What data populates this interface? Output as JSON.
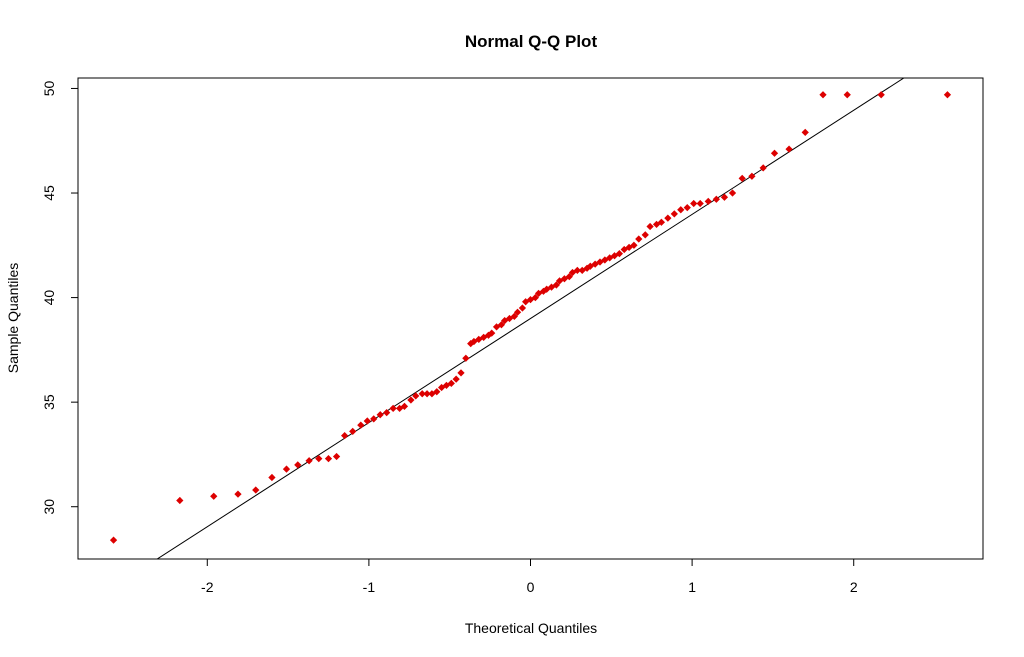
{
  "chart_data": {
    "type": "scatter",
    "title": "Normal Q-Q Plot",
    "xlabel": "Theoretical Quantiles",
    "ylabel": "Sample Quantiles",
    "xlim": [
      -2.8,
      2.8
    ],
    "ylim": [
      27.5,
      50.5
    ],
    "x_ticks": [
      -2,
      -1,
      0,
      1,
      2
    ],
    "x_tick_labels": [
      "-2",
      "-1",
      "0",
      "1",
      "2"
    ],
    "y_ticks": [
      30,
      35,
      40,
      45,
      50
    ],
    "y_tick_labels": [
      "30",
      "35",
      "40",
      "45",
      "50"
    ],
    "grid": false,
    "point_color": "#dd0000",
    "line_color": "#000000",
    "reference_line": {
      "x": [
        -2.8,
        2.8
      ],
      "y": [
        25.06,
        52.94
      ]
    },
    "series": [
      {
        "x": [
          -2.58,
          -2.17,
          -1.96,
          -1.81,
          -1.7,
          -1.6,
          -1.51,
          -1.44,
          -1.37,
          -1.31,
          -1.25,
          -1.2,
          -1.15,
          -1.1,
          -1.05,
          -1.01,
          -0.97,
          -0.93,
          -0.89,
          -0.85,
          -0.81,
          -0.78,
          -0.74,
          -0.71,
          -0.67,
          -0.64,
          -0.61,
          -0.58,
          -0.55,
          -0.52,
          -0.49,
          -0.46,
          -0.43,
          -0.4,
          -0.37,
          -0.35,
          -0.32,
          -0.29,
          -0.26,
          -0.24,
          -0.21,
          -0.18,
          -0.16,
          -0.13,
          -0.1,
          -0.08,
          -0.05,
          -0.03,
          0.0,
          0.03,
          0.05,
          0.08,
          0.1,
          0.13,
          0.16,
          0.18,
          0.21,
          0.24,
          0.26,
          0.29,
          0.32,
          0.35,
          0.37,
          0.4,
          0.43,
          0.46,
          0.49,
          0.52,
          0.55,
          0.58,
          0.61,
          0.64,
          0.67,
          0.71,
          0.74,
          0.78,
          0.81,
          0.85,
          0.89,
          0.93,
          0.97,
          1.01,
          1.05,
          1.1,
          1.15,
          1.2,
          1.25,
          1.31,
          1.37,
          1.44,
          1.51,
          1.6,
          1.7,
          1.81,
          1.96,
          2.17,
          2.58
        ],
        "y": [
          28.4,
          30.3,
          30.5,
          30.6,
          30.8,
          31.4,
          31.8,
          32.0,
          32.2,
          32.3,
          32.3,
          32.4,
          33.4,
          33.6,
          33.9,
          34.1,
          34.2,
          34.4,
          34.5,
          34.7,
          34.7,
          34.8,
          35.1,
          35.3,
          35.4,
          35.4,
          35.4,
          35.5,
          35.7,
          35.8,
          35.9,
          36.1,
          36.4,
          37.1,
          37.8,
          37.9,
          38.0,
          38.1,
          38.2,
          38.3,
          38.6,
          38.7,
          38.9,
          39.0,
          39.1,
          39.3,
          39.5,
          39.8,
          39.9,
          40.0,
          40.2,
          40.3,
          40.4,
          40.5,
          40.6,
          40.8,
          40.9,
          41.0,
          41.2,
          41.3,
          41.3,
          41.4,
          41.5,
          41.6,
          41.7,
          41.8,
          41.9,
          42.0,
          42.1,
          42.3,
          42.4,
          42.5,
          42.8,
          43.0,
          43.4,
          43.5,
          43.6,
          43.8,
          44.0,
          44.2,
          44.3,
          44.5,
          44.5,
          44.6,
          44.7,
          44.8,
          45.0,
          45.7,
          45.8,
          46.2,
          46.9,
          47.1,
          47.9,
          49.7,
          49.7,
          49.7,
          49.7
        ]
      }
    ]
  }
}
